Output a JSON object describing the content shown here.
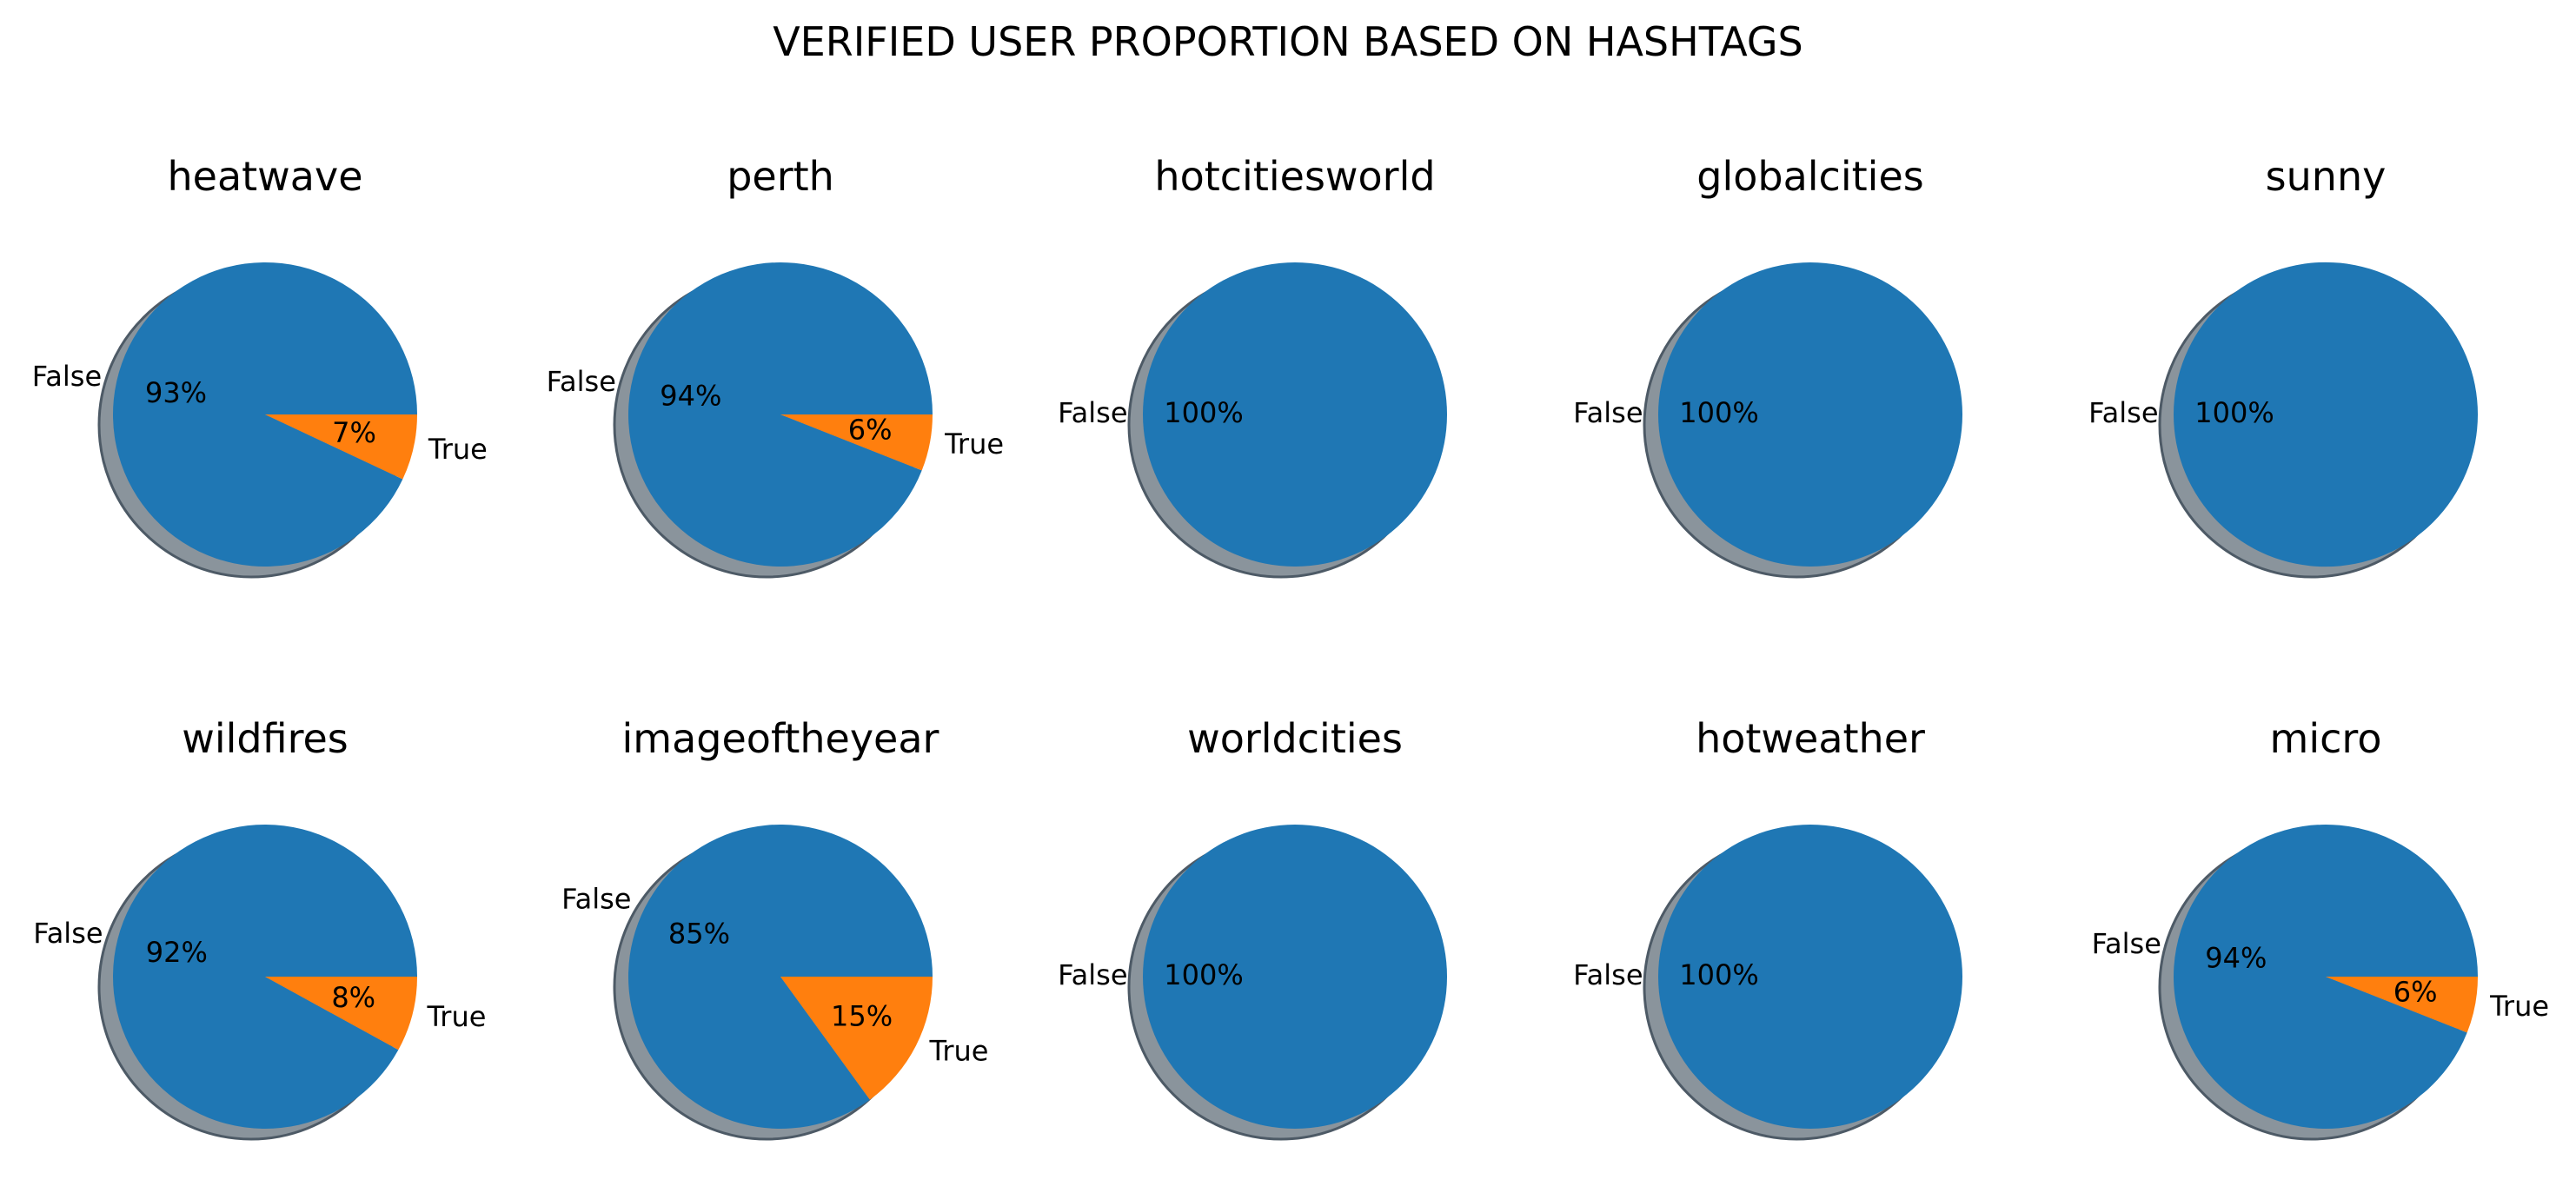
{
  "title": "VERIFIED USER PROPORTION BASED ON HASHTAGS",
  "colors": {
    "False": "#1f77b4",
    "True": "#ff7f0e",
    "shadow": "#8a949c",
    "shadow_edge": "#4d5a66"
  },
  "chart_data": [
    {
      "type": "pie",
      "title": "heatwave",
      "labels": [
        "False",
        "True"
      ],
      "values": [
        93,
        7
      ],
      "value_labels": [
        "93%",
        "7%"
      ]
    },
    {
      "type": "pie",
      "title": "perth",
      "labels": [
        "False",
        "True"
      ],
      "values": [
        94,
        6
      ],
      "value_labels": [
        "94%",
        "6%"
      ]
    },
    {
      "type": "pie",
      "title": "hotcitiesworld",
      "labels": [
        "False"
      ],
      "values": [
        100
      ],
      "value_labels": [
        "100%"
      ]
    },
    {
      "type": "pie",
      "title": "globalcities",
      "labels": [
        "False"
      ],
      "values": [
        100
      ],
      "value_labels": [
        "100%"
      ]
    },
    {
      "type": "pie",
      "title": "sunny",
      "labels": [
        "False"
      ],
      "values": [
        100
      ],
      "value_labels": [
        "100%"
      ]
    },
    {
      "type": "pie",
      "title": "wildfires",
      "labels": [
        "False",
        "True"
      ],
      "values": [
        92,
        8
      ],
      "value_labels": [
        "92%",
        "8%"
      ]
    },
    {
      "type": "pie",
      "title": "imageoftheyear",
      "labels": [
        "False",
        "True"
      ],
      "values": [
        85,
        15
      ],
      "value_labels": [
        "85%",
        "15%"
      ]
    },
    {
      "type": "pie",
      "title": "worldcities",
      "labels": [
        "False"
      ],
      "values": [
        100
      ],
      "value_labels": [
        "100%"
      ]
    },
    {
      "type": "pie",
      "title": "hotweather",
      "labels": [
        "False"
      ],
      "values": [
        100
      ],
      "value_labels": [
        "100%"
      ]
    },
    {
      "type": "pie",
      "title": "micro",
      "labels": [
        "False",
        "True"
      ],
      "values": [
        94,
        6
      ],
      "value_labels": [
        "94%",
        "6%"
      ]
    }
  ]
}
